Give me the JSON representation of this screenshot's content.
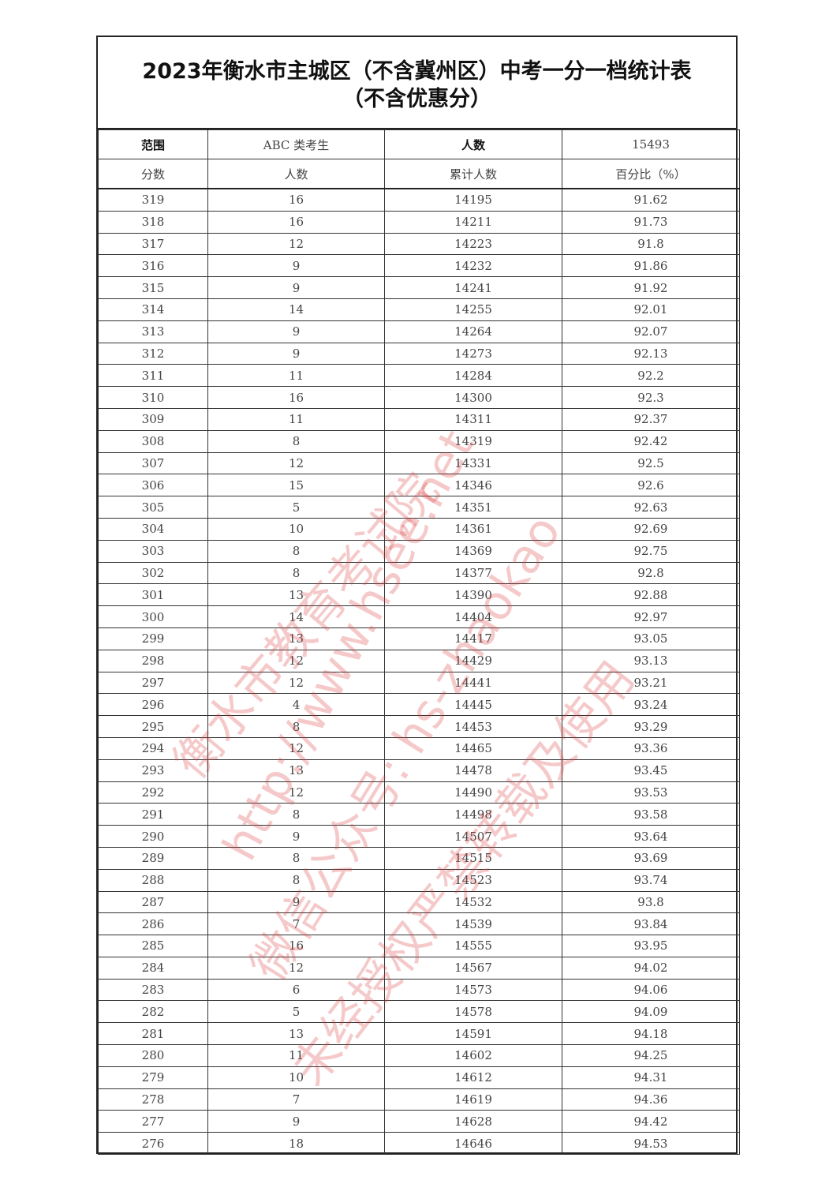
{
  "title": {
    "line1": "2023年衡水市主城区（不含冀州区）中考一分一档统计表",
    "line2": "（不含优惠分）"
  },
  "summary": {
    "range_label": "范围",
    "range_value": "ABC 类考生",
    "count_label": "人数",
    "count_value": "15493"
  },
  "columns": [
    "分数",
    "人数",
    "累计人数",
    "百分比（%）"
  ],
  "rows": [
    [
      "319",
      "16",
      "14195",
      "91.62"
    ],
    [
      "318",
      "16",
      "14211",
      "91.73"
    ],
    [
      "317",
      "12",
      "14223",
      "91.8"
    ],
    [
      "316",
      "9",
      "14232",
      "91.86"
    ],
    [
      "315",
      "9",
      "14241",
      "91.92"
    ],
    [
      "314",
      "14",
      "14255",
      "92.01"
    ],
    [
      "313",
      "9",
      "14264",
      "92.07"
    ],
    [
      "312",
      "9",
      "14273",
      "92.13"
    ],
    [
      "311",
      "11",
      "14284",
      "92.2"
    ],
    [
      "310",
      "16",
      "14300",
      "92.3"
    ],
    [
      "309",
      "11",
      "14311",
      "92.37"
    ],
    [
      "308",
      "8",
      "14319",
      "92.42"
    ],
    [
      "307",
      "12",
      "14331",
      "92.5"
    ],
    [
      "306",
      "15",
      "14346",
      "92.6"
    ],
    [
      "305",
      "5",
      "14351",
      "92.63"
    ],
    [
      "304",
      "10",
      "14361",
      "92.69"
    ],
    [
      "303",
      "8",
      "14369",
      "92.75"
    ],
    [
      "302",
      "8",
      "14377",
      "92.8"
    ],
    [
      "301",
      "13",
      "14390",
      "92.88"
    ],
    [
      "300",
      "14",
      "14404",
      "92.97"
    ],
    [
      "299",
      "13",
      "14417",
      "93.05"
    ],
    [
      "298",
      "12",
      "14429",
      "93.13"
    ],
    [
      "297",
      "12",
      "14441",
      "93.21"
    ],
    [
      "296",
      "4",
      "14445",
      "93.24"
    ],
    [
      "295",
      "8",
      "14453",
      "93.29"
    ],
    [
      "294",
      "12",
      "14465",
      "93.36"
    ],
    [
      "293",
      "13",
      "14478",
      "93.45"
    ],
    [
      "292",
      "12",
      "14490",
      "93.53"
    ],
    [
      "291",
      "8",
      "14498",
      "93.58"
    ],
    [
      "290",
      "9",
      "14507",
      "93.64"
    ],
    [
      "289",
      "8",
      "14515",
      "93.69"
    ],
    [
      "288",
      "8",
      "14523",
      "93.74"
    ],
    [
      "287",
      "9",
      "14532",
      "93.8"
    ],
    [
      "286",
      "7",
      "14539",
      "93.84"
    ],
    [
      "285",
      "16",
      "14555",
      "93.95"
    ],
    [
      "284",
      "12",
      "14567",
      "94.02"
    ],
    [
      "283",
      "6",
      "14573",
      "94.06"
    ],
    [
      "282",
      "5",
      "14578",
      "94.09"
    ],
    [
      "281",
      "13",
      "14591",
      "94.18"
    ],
    [
      "280",
      "11",
      "14602",
      "94.25"
    ],
    [
      "279",
      "10",
      "14612",
      "94.31"
    ],
    [
      "278",
      "7",
      "14619",
      "94.36"
    ],
    [
      "277",
      "9",
      "14628",
      "94.42"
    ],
    [
      "276",
      "18",
      "14646",
      "94.53"
    ]
  ],
  "watermarks": [
    "衡水市教育考试院",
    "http://www.hsee.net",
    "微信公众号: hs-zhaokao",
    "未经授权严禁转载及使用"
  ],
  "watermark_color": "#dc3c3c"
}
